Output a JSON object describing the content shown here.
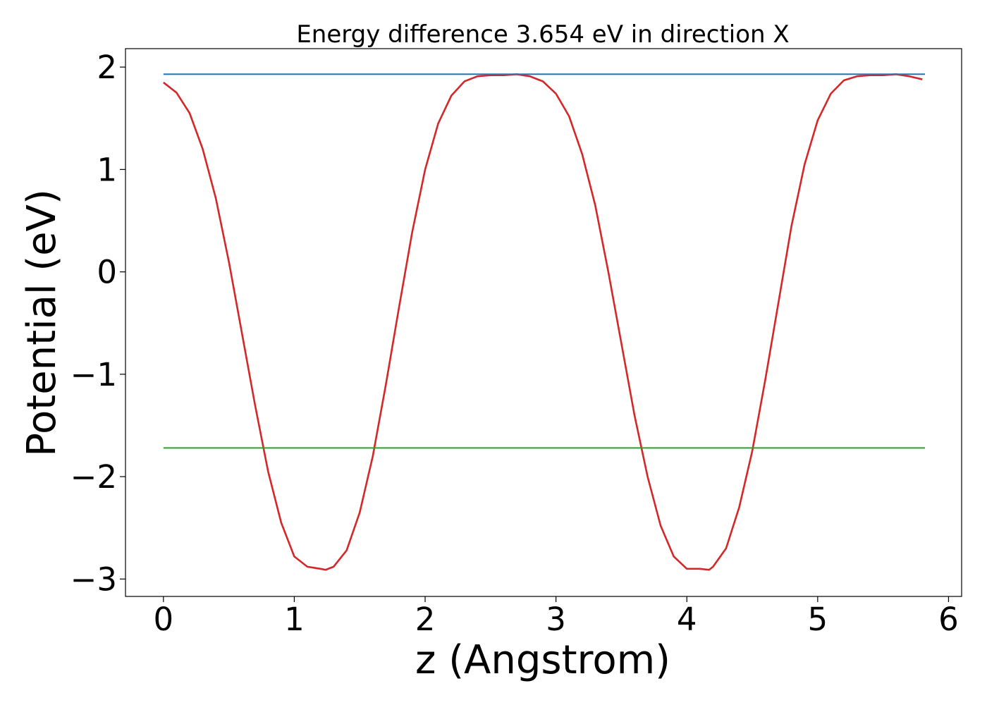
{
  "chart_data": {
    "type": "line",
    "title": "Energy difference 3.654 eV in direction X",
    "xlabel": "z (Angstrom)",
    "ylabel": "Potential (eV)",
    "xlim": [
      -0.29,
      6.1
    ],
    "ylim": [
      -3.17,
      2.18
    ],
    "xticks": [
      0,
      1,
      2,
      3,
      4,
      5,
      6
    ],
    "xtick_labels": [
      "0",
      "1",
      "2",
      "3",
      "4",
      "5",
      "6"
    ],
    "yticks": [
      -3,
      -2,
      -1,
      0,
      1,
      2
    ],
    "ytick_labels": [
      "−3",
      "−2",
      "−1",
      "0",
      "1",
      "2"
    ],
    "grid": false,
    "series": [
      {
        "color": "#d62728",
        "x": [
          0.0,
          0.1,
          0.2,
          0.3,
          0.4,
          0.5,
          0.6,
          0.7,
          0.8,
          0.9,
          1.0,
          1.1,
          1.2,
          1.24,
          1.3,
          1.4,
          1.5,
          1.6,
          1.7,
          1.8,
          1.9,
          2.0,
          2.1,
          2.2,
          2.3,
          2.4,
          2.5,
          2.6,
          2.7,
          2.8,
          2.9,
          3.0,
          3.1,
          3.2,
          3.3,
          3.4,
          3.5,
          3.6,
          3.7,
          3.8,
          3.9,
          4.0,
          4.1,
          4.17,
          4.2,
          4.3,
          4.4,
          4.5,
          4.6,
          4.7,
          4.8,
          4.9,
          5.0,
          5.1,
          5.2,
          5.3,
          5.4,
          5.5,
          5.6,
          5.7,
          5.8
        ],
        "y": [
          1.85,
          1.75,
          1.55,
          1.2,
          0.72,
          0.1,
          -0.6,
          -1.3,
          -1.95,
          -2.45,
          -2.78,
          -2.88,
          -2.9,
          -2.91,
          -2.88,
          -2.72,
          -2.35,
          -1.8,
          -1.1,
          -0.35,
          0.38,
          1.0,
          1.45,
          1.72,
          1.86,
          1.91,
          1.92,
          1.92,
          1.93,
          1.91,
          1.86,
          1.74,
          1.52,
          1.15,
          0.65,
          0.0,
          -0.7,
          -1.4,
          -2.0,
          -2.48,
          -2.78,
          -2.9,
          -2.9,
          -2.91,
          -2.88,
          -2.7,
          -2.3,
          -1.75,
          -1.05,
          -0.3,
          0.45,
          1.05,
          1.48,
          1.74,
          1.87,
          1.91,
          1.92,
          1.92,
          1.93,
          1.91,
          1.88
        ]
      },
      {
        "color": "#1f77b4",
        "x": [
          0.0,
          5.82
        ],
        "y": [
          1.93,
          1.93
        ]
      },
      {
        "color": "#2ca02c",
        "x": [
          0.0,
          5.82
        ],
        "y": [
          -1.72,
          -1.72
        ]
      }
    ]
  }
}
